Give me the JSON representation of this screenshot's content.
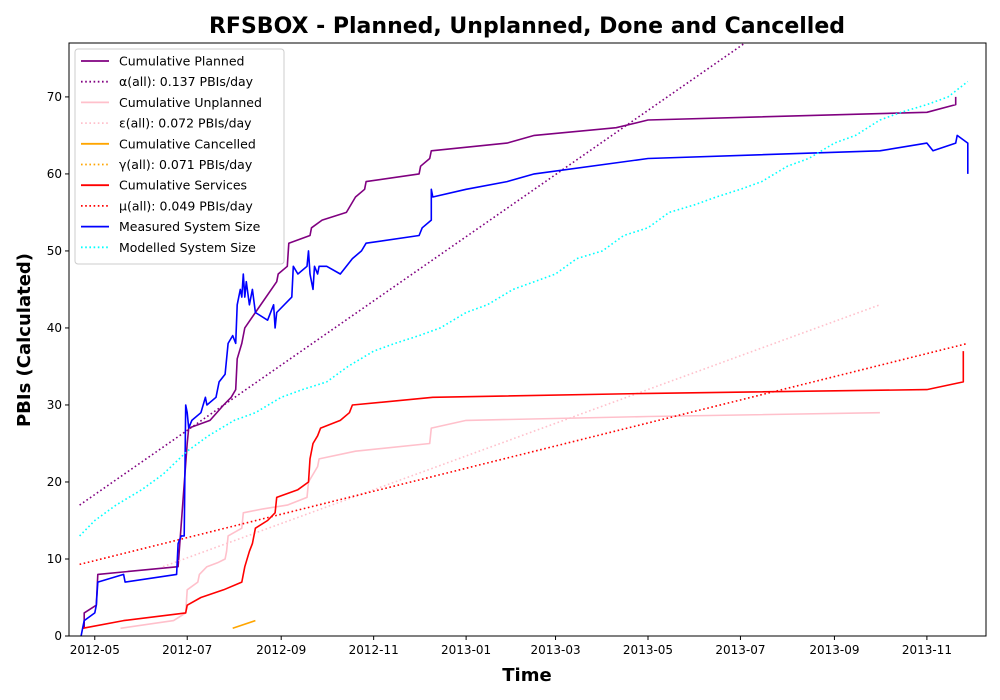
{
  "chart_data": {
    "type": "line",
    "title": "RFSBOX - Planned, Unplanned, Done  and Cancelled",
    "xlabel": "Time",
    "ylabel": "PBIs (Calculated)",
    "xlim": [
      "2012-04-14",
      "2013-12-10"
    ],
    "ylim": [
      0,
      77
    ],
    "x_ticks": [
      "2012-05",
      "2012-07",
      "2012-09",
      "2012-11",
      "2013-01",
      "2013-03",
      "2013-05",
      "2013-07",
      "2013-09",
      "2013-11"
    ],
    "y_ticks": [
      0,
      10,
      20,
      30,
      40,
      50,
      60,
      70
    ],
    "grid": false,
    "legend_position": "top-left",
    "series": [
      {
        "name": "Cumulative Planned",
        "color": "#800080",
        "style": "solid",
        "points": [
          [
            "2012-04-24",
            1
          ],
          [
            "2012-04-24",
            3
          ],
          [
            "2012-05-02",
            4
          ],
          [
            "2012-05-03",
            8
          ],
          [
            "2012-06-25",
            9
          ],
          [
            "2012-07-01",
            25
          ],
          [
            "2012-07-02",
            27
          ],
          [
            "2012-07-16",
            28
          ],
          [
            "2012-07-25",
            30
          ],
          [
            "2012-07-30",
            31
          ],
          [
            "2012-08-02",
            32
          ],
          [
            "2012-08-03",
            36
          ],
          [
            "2012-08-06",
            38
          ],
          [
            "2012-08-08",
            40
          ],
          [
            "2012-08-15",
            42
          ],
          [
            "2012-08-29",
            46
          ],
          [
            "2012-08-30",
            47
          ],
          [
            "2012-09-05",
            48
          ],
          [
            "2012-09-06",
            51
          ],
          [
            "2012-09-20",
            52
          ],
          [
            "2012-09-21",
            53
          ],
          [
            "2012-09-28",
            54
          ],
          [
            "2012-10-14",
            55
          ],
          [
            "2012-10-20",
            57
          ],
          [
            "2012-10-26",
            58
          ],
          [
            "2012-10-27",
            59
          ],
          [
            "2012-12-01",
            60
          ],
          [
            "2012-12-02",
            61
          ],
          [
            "2012-12-08",
            62
          ],
          [
            "2012-12-09",
            63
          ],
          [
            "2013-01-28",
            64
          ],
          [
            "2013-02-15",
            65
          ],
          [
            "2013-04-10",
            66
          ],
          [
            "2013-05-01",
            67
          ],
          [
            "2013-11-01",
            68
          ],
          [
            "2013-11-20",
            69
          ],
          [
            "2013-11-20",
            70
          ]
        ]
      },
      {
        "name": "α(all): 0.137 PBIs/day",
        "color": "#800080",
        "style": "dotted",
        "points": [
          [
            "2012-04-21",
            17
          ],
          [
            "2013-07-04",
            77
          ]
        ]
      },
      {
        "name": "Cumulative Unplanned",
        "color": "#ffc0cb",
        "style": "solid",
        "points": [
          [
            "2012-05-18",
            1
          ],
          [
            "2012-06-22",
            2
          ],
          [
            "2012-06-30",
            3
          ],
          [
            "2012-07-01",
            6
          ],
          [
            "2012-07-08",
            7
          ],
          [
            "2012-07-09",
            8
          ],
          [
            "2012-07-14",
            9
          ],
          [
            "2012-07-21",
            9.5
          ],
          [
            "2012-07-26",
            10
          ],
          [
            "2012-07-27",
            11
          ],
          [
            "2012-07-28",
            13
          ],
          [
            "2012-08-06",
            14
          ],
          [
            "2012-08-07",
            16
          ],
          [
            "2012-08-20",
            16.5
          ],
          [
            "2012-09-05",
            17
          ],
          [
            "2012-09-18",
            18
          ],
          [
            "2012-09-19",
            20
          ],
          [
            "2012-09-25",
            22
          ],
          [
            "2012-09-26",
            23
          ],
          [
            "2012-10-20",
            24
          ],
          [
            "2012-12-08",
            25
          ],
          [
            "2012-12-09",
            27
          ],
          [
            "2013-01-01",
            28
          ],
          [
            "2013-05-01",
            28.5
          ],
          [
            "2013-10-01",
            29
          ]
        ]
      },
      {
        "name": "ε(all): 0.072 PBIs/day",
        "color": "#ffc0cb",
        "style": "dotted",
        "points": [
          [
            "2012-06-15",
            9
          ],
          [
            "2013-10-01",
            43
          ]
        ]
      },
      {
        "name": "Cumulative Cancelled",
        "color": "#ffa500",
        "style": "solid",
        "points": [
          [
            "2012-07-31",
            1
          ],
          [
            "2012-08-15",
            2
          ]
        ]
      },
      {
        "name": "γ(all): 0.071 PBIs/day",
        "color": "#ffa500",
        "style": "dotted",
        "points": []
      },
      {
        "name": "Cumulative Services",
        "color": "#ff0000",
        "style": "solid",
        "points": [
          [
            "2012-04-23",
            1
          ],
          [
            "2012-05-20",
            2
          ],
          [
            "2012-06-30",
            3
          ],
          [
            "2012-07-01",
            4
          ],
          [
            "2012-07-10",
            5
          ],
          [
            "2012-07-25",
            6
          ],
          [
            "2012-08-06",
            7
          ],
          [
            "2012-08-08",
            9
          ],
          [
            "2012-08-11",
            11
          ],
          [
            "2012-08-13",
            12
          ],
          [
            "2012-08-15",
            14
          ],
          [
            "2012-08-23",
            15
          ],
          [
            "2012-08-28",
            16
          ],
          [
            "2012-08-29",
            18
          ],
          [
            "2012-09-12",
            19
          ],
          [
            "2012-09-19",
            20
          ],
          [
            "2012-09-20",
            23
          ],
          [
            "2012-09-22",
            25
          ],
          [
            "2012-09-25",
            26
          ],
          [
            "2012-09-27",
            27
          ],
          [
            "2012-10-10",
            28
          ],
          [
            "2012-10-16",
            29
          ],
          [
            "2012-10-18",
            30
          ],
          [
            "2012-12-10",
            31
          ],
          [
            "2013-05-01",
            31.5
          ],
          [
            "2013-11-01",
            32
          ],
          [
            "2013-11-25",
            33
          ],
          [
            "2013-11-25",
            37
          ]
        ]
      },
      {
        "name": "μ(all): 0.049 PBIs/day",
        "color": "#ff0000",
        "style": "dotted",
        "points": [
          [
            "2012-04-21",
            9.3
          ],
          [
            "2013-11-28",
            38
          ]
        ]
      },
      {
        "name": "Measured System Size",
        "color": "#0000ff",
        "style": "solid",
        "points": [
          [
            "2012-04-22",
            0
          ],
          [
            "2012-04-23",
            1
          ],
          [
            "2012-04-24",
            2
          ],
          [
            "2012-05-01",
            3
          ],
          [
            "2012-05-02",
            4
          ],
          [
            "2012-05-03",
            7
          ],
          [
            "2012-05-20",
            8
          ],
          [
            "2012-05-21",
            7
          ],
          [
            "2012-06-24",
            8
          ],
          [
            "2012-06-25",
            12
          ],
          [
            "2012-06-27",
            13
          ],
          [
            "2012-06-29",
            13
          ],
          [
            "2012-06-30",
            30
          ],
          [
            "2012-07-01",
            29
          ],
          [
            "2012-07-02",
            27
          ],
          [
            "2012-07-04",
            28
          ],
          [
            "2012-07-10",
            29
          ],
          [
            "2012-07-13",
            31
          ],
          [
            "2012-07-14",
            30
          ],
          [
            "2012-07-20",
            31
          ],
          [
            "2012-07-22",
            33
          ],
          [
            "2012-07-26",
            34
          ],
          [
            "2012-07-28",
            38
          ],
          [
            "2012-07-31",
            39
          ],
          [
            "2012-08-02",
            38
          ],
          [
            "2012-08-03",
            43
          ],
          [
            "2012-08-05",
            45
          ],
          [
            "2012-08-06",
            44
          ],
          [
            "2012-08-07",
            47
          ],
          [
            "2012-08-08",
            44
          ],
          [
            "2012-08-09",
            46
          ],
          [
            "2012-08-11",
            43
          ],
          [
            "2012-08-13",
            45
          ],
          [
            "2012-08-15",
            42
          ],
          [
            "2012-08-23",
            41
          ],
          [
            "2012-08-27",
            43
          ],
          [
            "2012-08-28",
            40
          ],
          [
            "2012-08-29",
            42
          ],
          [
            "2012-09-08",
            44
          ],
          [
            "2012-09-09",
            48
          ],
          [
            "2012-09-12",
            47
          ],
          [
            "2012-09-18",
            48
          ],
          [
            "2012-09-19",
            50
          ],
          [
            "2012-09-20",
            47
          ],
          [
            "2012-09-22",
            45
          ],
          [
            "2012-09-23",
            48
          ],
          [
            "2012-09-25",
            47
          ],
          [
            "2012-09-26",
            48
          ],
          [
            "2012-10-01",
            48
          ],
          [
            "2012-10-10",
            47
          ],
          [
            "2012-10-18",
            49
          ],
          [
            "2012-10-24",
            50
          ],
          [
            "2012-10-27",
            51
          ],
          [
            "2012-12-01",
            52
          ],
          [
            "2012-12-03",
            53
          ],
          [
            "2012-12-09",
            54
          ],
          [
            "2012-12-09",
            58
          ],
          [
            "2012-12-10",
            57
          ],
          [
            "2013-01-01",
            58
          ],
          [
            "2013-01-28",
            59
          ],
          [
            "2013-02-15",
            60
          ],
          [
            "2013-05-01",
            62
          ],
          [
            "2013-10-01",
            63
          ],
          [
            "2013-11-01",
            64
          ],
          [
            "2013-11-05",
            63
          ],
          [
            "2013-11-20",
            64
          ],
          [
            "2013-11-21",
            65
          ],
          [
            "2013-11-28",
            64
          ],
          [
            "2013-11-28",
            60
          ]
        ]
      },
      {
        "name": "Modelled System Size",
        "color": "#00ffff",
        "style": "dotted",
        "points": [
          [
            "2012-04-21",
            13
          ],
          [
            "2012-05-01",
            15
          ],
          [
            "2012-05-15",
            17
          ],
          [
            "2012-06-01",
            19
          ],
          [
            "2012-06-15",
            21
          ],
          [
            "2012-07-01",
            24
          ],
          [
            "2012-07-15",
            26
          ],
          [
            "2012-08-01",
            28
          ],
          [
            "2012-08-15",
            29
          ],
          [
            "2012-09-01",
            31
          ],
          [
            "2012-09-15",
            32
          ],
          [
            "2012-10-01",
            33
          ],
          [
            "2012-10-15",
            35
          ],
          [
            "2012-11-01",
            37
          ],
          [
            "2012-11-15",
            38
          ],
          [
            "2012-12-01",
            39
          ],
          [
            "2012-12-15",
            40
          ],
          [
            "2013-01-01",
            42
          ],
          [
            "2013-01-15",
            43
          ],
          [
            "2013-02-01",
            45
          ],
          [
            "2013-02-15",
            46
          ],
          [
            "2013-03-01",
            47
          ],
          [
            "2013-03-15",
            49
          ],
          [
            "2013-04-01",
            50
          ],
          [
            "2013-04-15",
            52
          ],
          [
            "2013-05-01",
            53
          ],
          [
            "2013-05-15",
            55
          ],
          [
            "2013-06-01",
            56
          ],
          [
            "2013-06-15",
            57
          ],
          [
            "2013-07-01",
            58
          ],
          [
            "2013-07-15",
            59
          ],
          [
            "2013-08-01",
            61
          ],
          [
            "2013-08-15",
            62
          ],
          [
            "2013-09-01",
            64
          ],
          [
            "2013-09-15",
            65
          ],
          [
            "2013-10-01",
            67
          ],
          [
            "2013-10-15",
            68
          ],
          [
            "2013-11-01",
            69
          ],
          [
            "2013-11-15",
            70
          ],
          [
            "2013-11-28",
            72
          ]
        ]
      }
    ]
  }
}
